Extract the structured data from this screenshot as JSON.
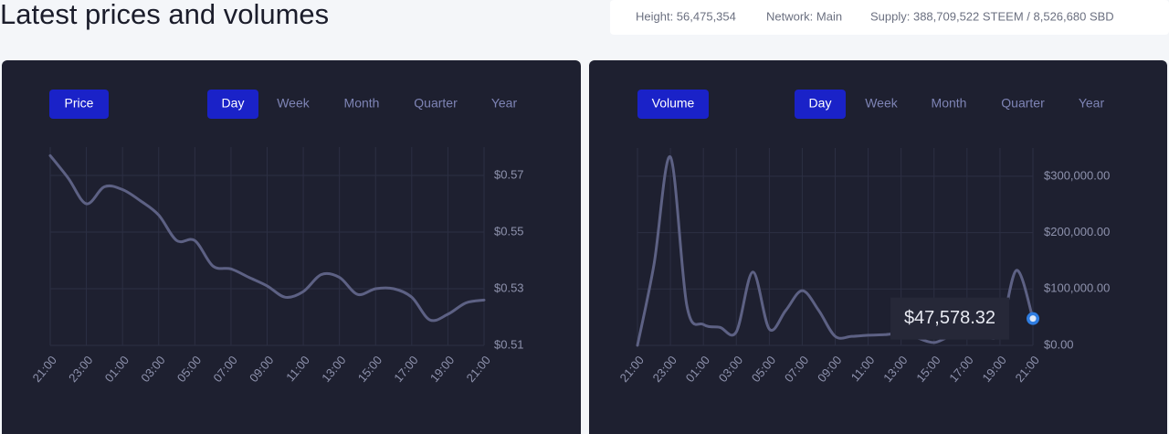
{
  "title": "Latest prices and volumes",
  "stats": [
    "Height: 56,475,354",
    "Network: Main",
    "Supply: 388,709,522 STEEM / 8,526,680 SBD"
  ],
  "controls": [
    {
      "metric": "Price",
      "periods": [
        "Day",
        "Week",
        "Month",
        "Quarter",
        "Year"
      ],
      "active": 0
    },
    {
      "metric": "Volume",
      "periods": [
        "Day",
        "Week",
        "Month",
        "Quarter",
        "Year"
      ],
      "active": 0
    }
  ],
  "chart_data": [
    {
      "type": "line",
      "color": "#5d6184",
      "grid": true,
      "categories": [
        "21:00",
        null,
        "23:00",
        null,
        "01:00",
        null,
        "03:00",
        null,
        "05:00",
        null,
        "07:00",
        null,
        "09:00",
        null,
        "11:00",
        null,
        "13:00",
        null,
        "15:00",
        null,
        "17:00",
        null,
        "19:00",
        null,
        "21:00"
      ],
      "values": [
        0.577,
        0.569,
        0.56,
        0.566,
        0.565,
        0.561,
        0.556,
        0.547,
        0.547,
        0.538,
        0.537,
        0.534,
        0.531,
        0.527,
        0.529,
        0.535,
        0.534,
        0.528,
        0.53,
        0.53,
        0.527,
        0.519,
        0.521,
        0.525,
        0.526
      ],
      "ylim": [
        0.51,
        0.58
      ],
      "yticks": [
        {
          "value": 0.51,
          "label": "$0.51"
        },
        {
          "value": 0.53,
          "label": "$0.53"
        },
        {
          "value": 0.55,
          "label": "$0.55"
        },
        {
          "value": 0.57,
          "label": "$0.57"
        }
      ]
    },
    {
      "type": "line",
      "color": "#5d6184",
      "grid": true,
      "highlight_color": "#2f7de1",
      "categories": [
        "21:00",
        null,
        "23:00",
        null,
        "01:00",
        null,
        "03:00",
        null,
        "05:00",
        null,
        "07:00",
        null,
        "09:00",
        null,
        "11:00",
        null,
        "13:00",
        null,
        "15:00",
        null,
        "17:00",
        null,
        "19:00",
        null,
        "21:00"
      ],
      "values": [
        0,
        143000,
        334000,
        70000,
        37000,
        32000,
        24000,
        130000,
        29000,
        62000,
        97000,
        62000,
        16000,
        16000,
        18000,
        19000,
        21000,
        13000,
        5000,
        16000,
        16000,
        16000,
        23000,
        133000,
        47578.32
      ],
      "value_labels": [
        null,
        null,
        null,
        null,
        null,
        null,
        null,
        null,
        null,
        null,
        null,
        null,
        null,
        null,
        null,
        null,
        null,
        null,
        null,
        null,
        null,
        null,
        null,
        null,
        "$47,578.32"
      ],
      "ylim": [
        0,
        350000
      ],
      "yticks": [
        {
          "value": 0,
          "label": "$0.00"
        },
        {
          "value": 100000,
          "label": "$100,000.00"
        },
        {
          "value": 200000,
          "label": "$200,000.00"
        },
        {
          "value": 300000,
          "label": "$300,000.00"
        }
      ]
    }
  ]
}
